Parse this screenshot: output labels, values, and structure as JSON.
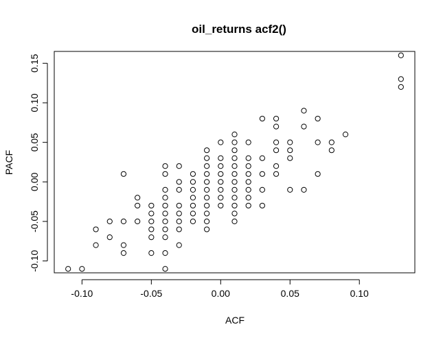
{
  "chart_data": {
    "type": "scatter",
    "title": "oil_returns acf2()",
    "xlabel": "ACF",
    "ylabel": "PACF",
    "xlim": [
      -0.12,
      0.14
    ],
    "ylim": [
      -0.115,
      0.165
    ],
    "xticks": [
      -0.1,
      -0.05,
      0.0,
      0.05,
      0.1
    ],
    "xtick_labels": [
      "-0.10",
      "-0.05",
      "0.00",
      "0.05",
      "0.10"
    ],
    "yticks": [
      -0.1,
      -0.05,
      0.0,
      0.05,
      0.1,
      0.15
    ],
    "ytick_labels": [
      "-0.10",
      "-0.05",
      "0.00",
      "0.05",
      "0.10",
      "0.15"
    ],
    "grid": false,
    "legend": false,
    "marker": "open-circle",
    "points": [
      [
        -0.11,
        -0.11
      ],
      [
        -0.1,
        -0.11
      ],
      [
        -0.09,
        -0.06
      ],
      [
        -0.09,
        -0.08
      ],
      [
        -0.08,
        -0.05
      ],
      [
        -0.08,
        -0.07
      ],
      [
        -0.07,
        0.01
      ],
      [
        -0.07,
        -0.05
      ],
      [
        -0.07,
        -0.08
      ],
      [
        -0.07,
        -0.09
      ],
      [
        -0.06,
        -0.02
      ],
      [
        -0.06,
        -0.03
      ],
      [
        -0.06,
        -0.05
      ],
      [
        -0.05,
        -0.03
      ],
      [
        -0.05,
        -0.04
      ],
      [
        -0.05,
        -0.05
      ],
      [
        -0.05,
        -0.06
      ],
      [
        -0.05,
        -0.07
      ],
      [
        -0.05,
        -0.09
      ],
      [
        -0.04,
        0.02
      ],
      [
        -0.04,
        0.01
      ],
      [
        -0.04,
        -0.01
      ],
      [
        -0.04,
        -0.02
      ],
      [
        -0.04,
        -0.03
      ],
      [
        -0.04,
        -0.04
      ],
      [
        -0.04,
        -0.05
      ],
      [
        -0.04,
        -0.06
      ],
      [
        -0.04,
        -0.07
      ],
      [
        -0.04,
        -0.09
      ],
      [
        -0.04,
        -0.11
      ],
      [
        -0.03,
        0.02
      ],
      [
        -0.03,
        0.0
      ],
      [
        -0.03,
        -0.01
      ],
      [
        -0.03,
        -0.03
      ],
      [
        -0.03,
        -0.04
      ],
      [
        -0.03,
        -0.05
      ],
      [
        -0.03,
        -0.06
      ],
      [
        -0.03,
        -0.08
      ],
      [
        -0.02,
        0.01
      ],
      [
        -0.02,
        0.0
      ],
      [
        -0.02,
        -0.01
      ],
      [
        -0.02,
        -0.02
      ],
      [
        -0.02,
        -0.03
      ],
      [
        -0.02,
        -0.04
      ],
      [
        -0.02,
        -0.05
      ],
      [
        -0.01,
        0.04
      ],
      [
        -0.01,
        0.03
      ],
      [
        -0.01,
        0.02
      ],
      [
        -0.01,
        0.01
      ],
      [
        -0.01,
        0.0
      ],
      [
        -0.01,
        -0.01
      ],
      [
        -0.01,
        -0.02
      ],
      [
        -0.01,
        -0.03
      ],
      [
        -0.01,
        -0.04
      ],
      [
        -0.01,
        -0.05
      ],
      [
        -0.01,
        -0.06
      ],
      [
        0.0,
        0.05
      ],
      [
        0.0,
        0.03
      ],
      [
        0.0,
        0.02
      ],
      [
        0.0,
        0.01
      ],
      [
        0.0,
        0.0
      ],
      [
        0.0,
        -0.01
      ],
      [
        0.0,
        -0.02
      ],
      [
        0.0,
        -0.03
      ],
      [
        0.01,
        0.06
      ],
      [
        0.01,
        0.05
      ],
      [
        0.01,
        0.04
      ],
      [
        0.01,
        0.03
      ],
      [
        0.01,
        0.02
      ],
      [
        0.01,
        0.01
      ],
      [
        0.01,
        0.0
      ],
      [
        0.01,
        -0.01
      ],
      [
        0.01,
        -0.02
      ],
      [
        0.01,
        -0.03
      ],
      [
        0.01,
        -0.04
      ],
      [
        0.01,
        -0.05
      ],
      [
        0.02,
        0.05
      ],
      [
        0.02,
        0.03
      ],
      [
        0.02,
        0.02
      ],
      [
        0.02,
        0.01
      ],
      [
        0.02,
        0.0
      ],
      [
        0.02,
        -0.01
      ],
      [
        0.02,
        -0.02
      ],
      [
        0.02,
        -0.03
      ],
      [
        0.03,
        0.08
      ],
      [
        0.03,
        0.03
      ],
      [
        0.03,
        0.01
      ],
      [
        0.03,
        -0.01
      ],
      [
        0.03,
        -0.03
      ],
      [
        0.04,
        0.08
      ],
      [
        0.04,
        0.07
      ],
      [
        0.04,
        0.05
      ],
      [
        0.04,
        0.04
      ],
      [
        0.04,
        0.02
      ],
      [
        0.04,
        0.01
      ],
      [
        0.05,
        0.05
      ],
      [
        0.05,
        0.04
      ],
      [
        0.05,
        0.03
      ],
      [
        0.05,
        -0.01
      ],
      [
        0.06,
        0.09
      ],
      [
        0.06,
        0.07
      ],
      [
        0.06,
        -0.01
      ],
      [
        0.07,
        0.08
      ],
      [
        0.07,
        0.05
      ],
      [
        0.07,
        0.01
      ],
      [
        0.08,
        0.05
      ],
      [
        0.08,
        0.04
      ],
      [
        0.09,
        0.06
      ],
      [
        0.13,
        0.16
      ],
      [
        0.13,
        0.13
      ],
      [
        0.13,
        0.12
      ]
    ]
  }
}
